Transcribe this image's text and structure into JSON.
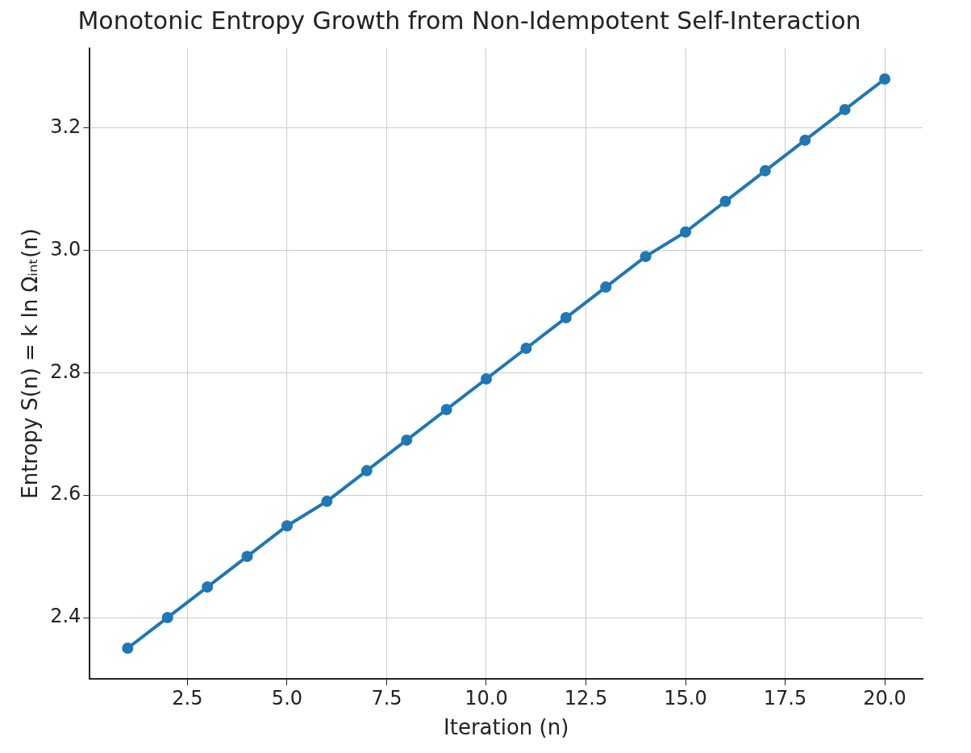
{
  "chart_data": {
    "type": "line",
    "title": "Monotonic Entropy Growth from Non-Idempotent Self-Interaction",
    "xlabel": "Iteration (n)",
    "ylabel": "Entropy S(n) = k ln Ωᵢₙₜ(n)",
    "x": [
      1,
      2,
      3,
      4,
      5,
      6,
      7,
      8,
      9,
      10,
      11,
      12,
      13,
      14,
      15,
      16,
      17,
      18,
      19,
      20
    ],
    "series": [
      {
        "color": "#1f77b4",
        "values": [
          2.35,
          2.4,
          2.45,
          2.5,
          2.55,
          2.59,
          2.64,
          2.69,
          2.74,
          2.79,
          2.84,
          2.89,
          2.94,
          2.99,
          3.03,
          3.08,
          3.13,
          3.18,
          3.23,
          3.28
        ]
      }
    ],
    "xlim": [
      0.05,
      20.95
    ],
    "xticks": [
      {
        "value": 2.5,
        "label": "2.5"
      },
      {
        "value": 5,
        "label": "5.0"
      },
      {
        "value": 7.5,
        "label": "7.5"
      },
      {
        "value": 10,
        "label": "10.0"
      },
      {
        "value": 12.5,
        "label": "12.5"
      },
      {
        "value": 15,
        "label": "15.0"
      },
      {
        "value": 17.5,
        "label": "17.5"
      },
      {
        "value": 20,
        "label": "20.0"
      }
    ],
    "ylim": [
      2.3,
      3.33
    ],
    "yticks": [
      2.4,
      2.6,
      2.8,
      {
        "value": 3,
        "label": "3.0"
      },
      3.2
    ],
    "grid": true,
    "legend": false,
    "marker": "circle",
    "line_style": "solid"
  }
}
